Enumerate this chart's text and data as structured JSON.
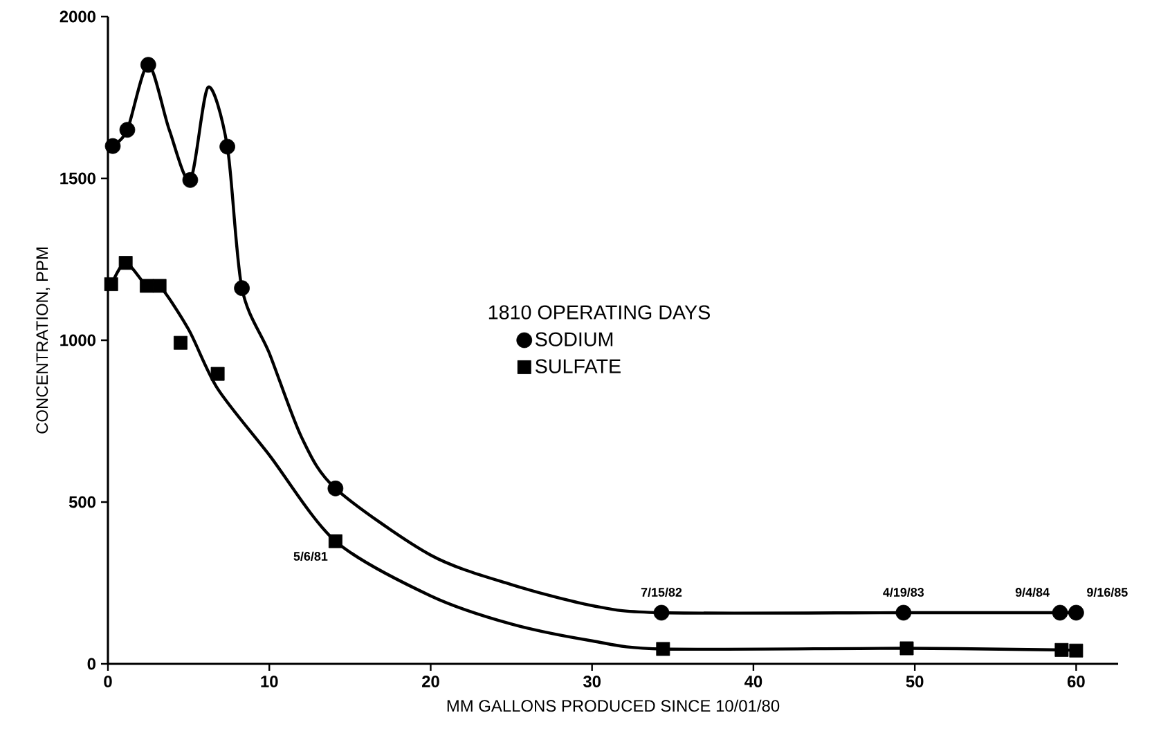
{
  "chart_data": {
    "type": "scatter",
    "xlabel": "MM GALLONS PRODUCED SINCE 10/01/80",
    "ylabel": "CONCENTRATION, PPM",
    "legend_title": "1810 OPERATING DAYS",
    "xlim": [
      0,
      62.6
    ],
    "ylim": [
      0,
      2000
    ],
    "xticks": [
      0,
      10,
      20,
      30,
      40,
      50,
      60
    ],
    "yticks": [
      0,
      500,
      1000,
      1500,
      2000
    ],
    "grid": false,
    "legend": "center",
    "series": [
      {
        "type": "line",
        "color": "#000000",
        "line_style": "solid",
        "x": [
          0,
          0.3,
          1.2,
          2.5,
          3.8,
          5.1,
          6.2,
          7.4,
          8.3,
          10,
          12,
          14.1,
          20,
          25,
          30,
          34.3,
          49.3,
          59.0,
          60.0
        ],
        "values": [
          1590,
          1600,
          1650,
          1851,
          1650,
          1495,
          1781,
          1598,
          1161,
          960,
          700,
          542,
          336,
          245,
          180,
          158,
          158,
          158,
          158
        ]
      },
      {
        "type": "line",
        "color": "#000000",
        "line_style": "solid",
        "x": [
          0,
          0.2,
          1.1,
          2.4,
          3.2,
          5,
          6.8,
          10,
          14.1,
          20,
          25,
          30,
          34.4,
          49.5,
          59.1,
          60.0
        ],
        "values": [
          1160,
          1173,
          1239,
          1168,
          1168,
          1033,
          850,
          645,
          379,
          210,
          123,
          71,
          46,
          48,
          43,
          41
        ]
      },
      {
        "name": "SODIUM",
        "color": "#000000",
        "marker": "circle",
        "x": [
          0.3,
          1.2,
          2.5,
          5.1,
          7.4,
          8.3,
          14.1,
          34.3,
          49.3,
          59.0,
          60.0
        ],
        "values": [
          1600,
          1650,
          1851,
          1495,
          1598,
          1161,
          542,
          158,
          158,
          158,
          158
        ]
      },
      {
        "name": "SULFATE",
        "color": "#000000",
        "marker": "square",
        "x": [
          0.2,
          1.1,
          2.4,
          3.2,
          4.5,
          6.8,
          14.1,
          34.4,
          49.5,
          59.1,
          60.0
        ],
        "values": [
          1173,
          1239,
          1168,
          1168,
          992,
          896,
          379,
          46,
          48,
          43,
          41
        ]
      }
    ],
    "annotations": [
      {
        "text": "5/6/81",
        "x": 14.1,
        "y": 379
      },
      {
        "text": "7/15/82",
        "x": 34.3,
        "y": 158
      },
      {
        "text": "4/19/83",
        "x": 49.3,
        "y": 158
      },
      {
        "text": "9/4/84",
        "x": 59.0,
        "y": 158
      },
      {
        "text": "9/16/85",
        "x": 60.0,
        "y": 158
      }
    ]
  }
}
